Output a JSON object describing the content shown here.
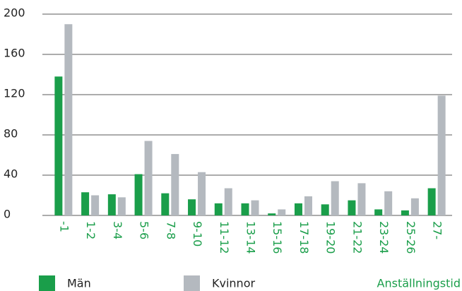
{
  "chart_data": {
    "type": "bar",
    "categories": [
      "-1",
      "1-2",
      "3-4",
      "5-6",
      "7-8",
      "9-10",
      "11-12",
      "13-14",
      "15-16",
      "17-18",
      "19-20",
      "21-22",
      "23-24",
      "25-26",
      "27-"
    ],
    "series": [
      {
        "name": "Män",
        "color": "#1a9e4a",
        "values": [
          138,
          23,
          21,
          41,
          22,
          16,
          12,
          12,
          2,
          12,
          11,
          15,
          6,
          5,
          27
        ]
      },
      {
        "name": "Kvinnor",
        "color": "#b4b9bf",
        "values": [
          190,
          20,
          18,
          74,
          61,
          43,
          27,
          15,
          6,
          19,
          34,
          32,
          24,
          17,
          119
        ]
      }
    ],
    "xlabel": "Anställningstid",
    "ylim": [
      0,
      200
    ],
    "yticks": [
      0,
      40,
      80,
      120,
      160,
      200
    ],
    "grid": true
  }
}
